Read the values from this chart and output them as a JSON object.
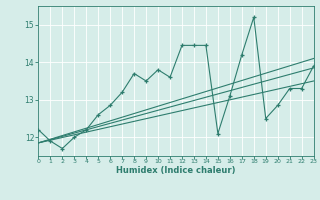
{
  "xlabel": "Humidex (Indice chaleur)",
  "ylabel": "",
  "bg_color": "#d6ede9",
  "line_color": "#2e7d6e",
  "grid_color": "#ffffff",
  "xmin": 0,
  "xmax": 23,
  "ymin": 11.5,
  "ymax": 15.5,
  "yticks": [
    12,
    13,
    14,
    15
  ],
  "xticks": [
    0,
    1,
    2,
    3,
    4,
    5,
    6,
    7,
    8,
    9,
    10,
    11,
    12,
    13,
    14,
    15,
    16,
    17,
    18,
    19,
    20,
    21,
    22,
    23
  ],
  "main_x": [
    0,
    1,
    2,
    3,
    4,
    5,
    6,
    7,
    8,
    9,
    10,
    11,
    12,
    13,
    14,
    15,
    16,
    17,
    18,
    19,
    20,
    21,
    22,
    23
  ],
  "main_y": [
    12.2,
    11.9,
    11.7,
    12.0,
    12.2,
    12.6,
    12.85,
    13.2,
    13.7,
    13.5,
    13.8,
    13.6,
    14.45,
    14.45,
    14.45,
    12.1,
    13.1,
    14.2,
    15.2,
    12.5,
    12.85,
    13.3,
    13.3,
    13.9
  ],
  "trend1_x": [
    0,
    23
  ],
  "trend1_y": [
    11.85,
    13.5
  ],
  "trend2_x": [
    0,
    23
  ],
  "trend2_y": [
    11.85,
    13.85
  ],
  "trend3_x": [
    0,
    23
  ],
  "trend3_y": [
    11.85,
    14.1
  ]
}
